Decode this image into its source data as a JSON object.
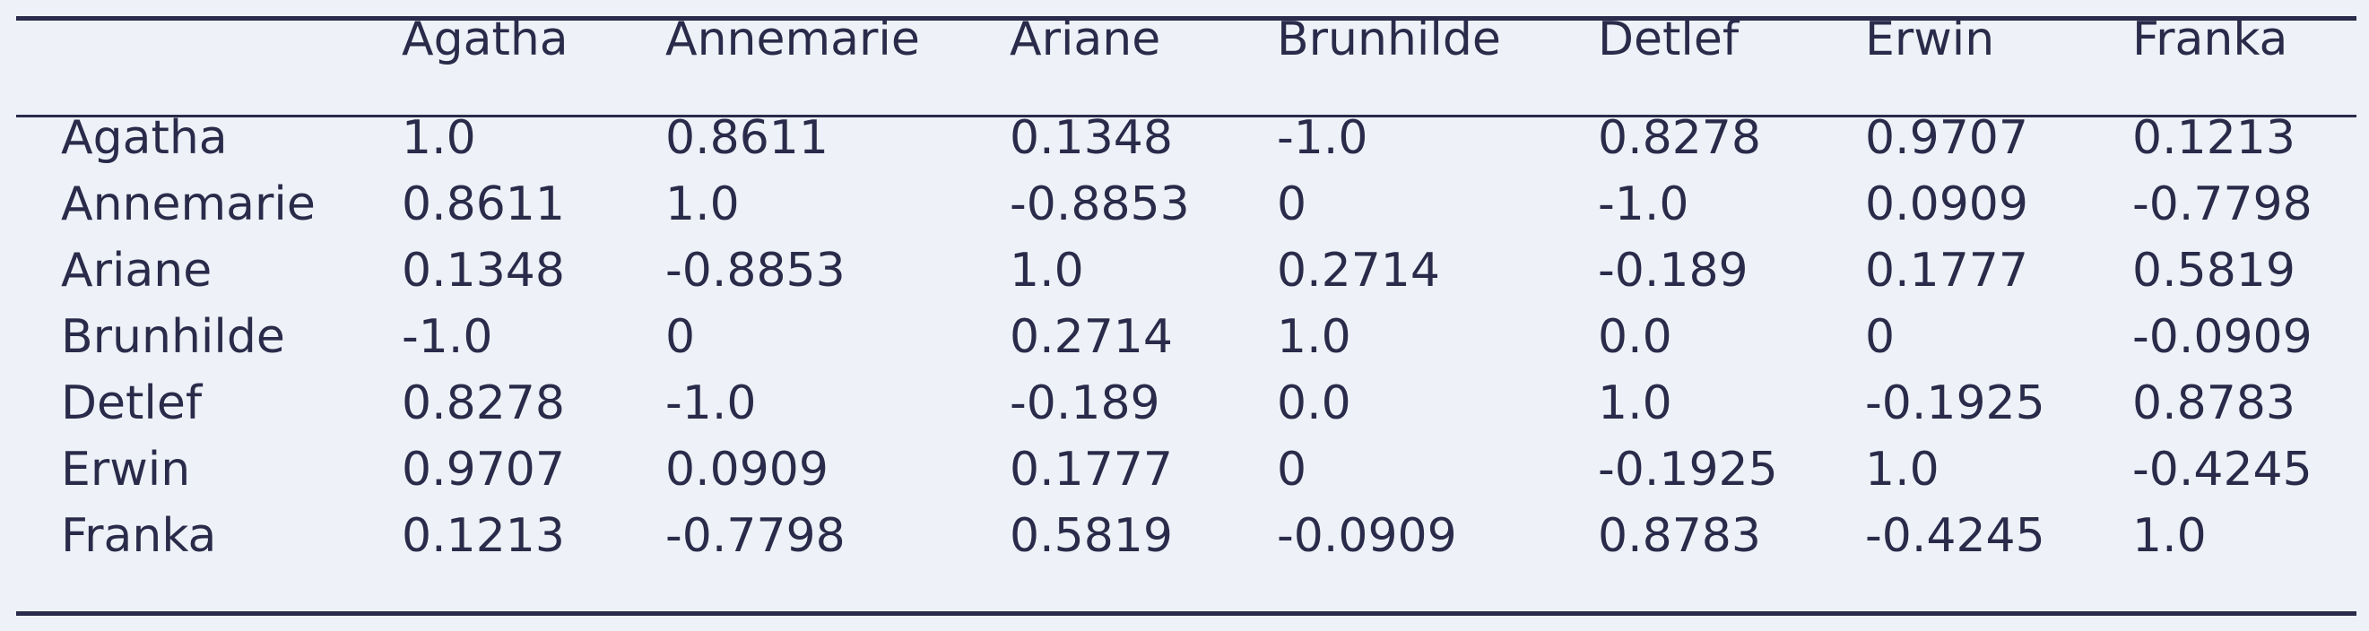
{
  "table": {
    "columns": [
      "",
      "Agatha",
      "Annemarie",
      "Ariane",
      "Brunhilde",
      "Detlef",
      "Erwin",
      "Franka"
    ],
    "rows": [
      {
        "label": "Agatha",
        "values": [
          "1.0",
          "0.8611",
          "0.1348",
          "-1.0",
          "0.8278",
          "0.9707",
          "0.1213"
        ]
      },
      {
        "label": "Annemarie",
        "values": [
          "0.8611",
          "1.0",
          "-0.8853",
          "0",
          "-1.0",
          "0.0909",
          "-0.7798"
        ]
      },
      {
        "label": "Ariane",
        "values": [
          "0.1348",
          "-0.8853",
          "1.0",
          "0.2714",
          "-0.189",
          "0.1777",
          "0.5819"
        ]
      },
      {
        "label": "Brunhilde",
        "values": [
          "-1.0",
          "0",
          "0.2714",
          "1.0",
          "0.0",
          "0",
          "-0.0909"
        ]
      },
      {
        "label": "Detlef",
        "values": [
          "0.8278",
          "-1.0",
          "-0.189",
          "0.0",
          "1.0",
          "-0.1925",
          "0.8783"
        ]
      },
      {
        "label": "Erwin",
        "values": [
          "0.9707",
          "0.0909",
          "0.1777",
          "0",
          "-0.1925",
          "1.0",
          "-0.4245"
        ]
      },
      {
        "label": "Franka",
        "values": [
          "0.1213",
          "-0.7798",
          "0.5819",
          "-0.0909",
          "0.8783",
          "-0.4245",
          "1.0"
        ]
      }
    ]
  }
}
